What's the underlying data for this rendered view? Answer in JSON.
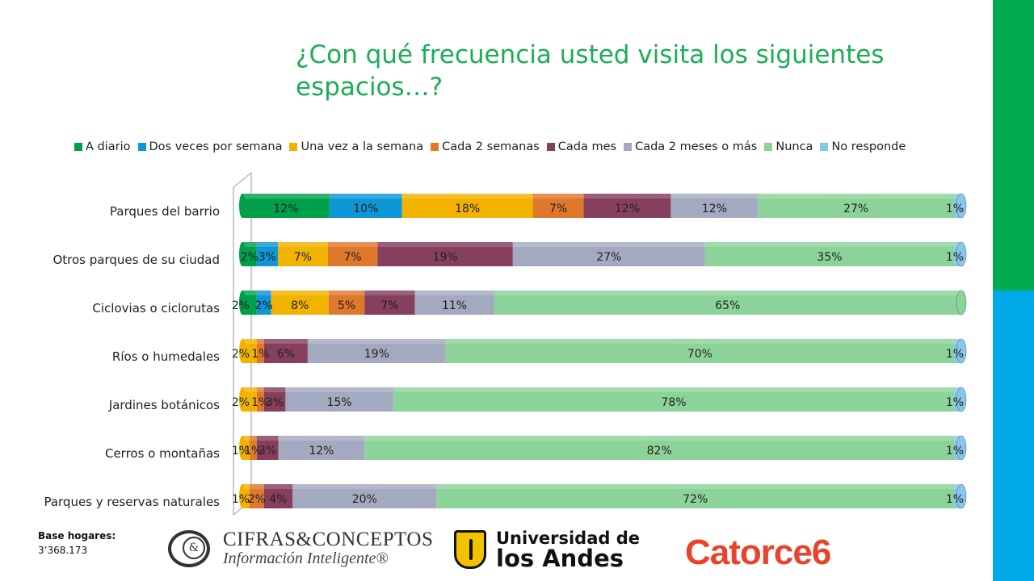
{
  "title": "¿Con qué frecuencia usted visita los siguientes espacios…?",
  "side_colors": [
    "#00AA4F",
    "#00A9E6"
  ],
  "chart_data": {
    "type": "bar",
    "orientation": "horizontal",
    "stacked": true,
    "percent_stacked": true,
    "legend_position": "top",
    "categories": [
      "Parques  del barrio",
      "Otros parques de su ciudad",
      "Ciclovias  o ciclorutas",
      "Ríos o humedales",
      "Jardines botánicos",
      "Cerros o montañas",
      "Parques y reservas naturales"
    ],
    "series": [
      {
        "name": "A diario",
        "color": "#00A04A",
        "values": [
          12,
          2,
          2,
          0,
          0,
          0,
          0
        ],
        "labels": [
          "12%",
          "2%",
          "2%",
          "",
          "",
          "",
          ""
        ]
      },
      {
        "name": "Dos veces por semana",
        "color": "#0E97D6",
        "values": [
          10,
          3,
          2,
          0,
          0,
          0,
          0
        ],
        "labels": [
          "10%",
          "3%",
          "2%",
          "",
          "",
          "",
          ""
        ]
      },
      {
        "name": "Una vez a la semana",
        "color": "#F2B300",
        "values": [
          18,
          7,
          8,
          2,
          2,
          1,
          1
        ],
        "labels": [
          "18%",
          "7%",
          "8%",
          "2%",
          "2%",
          "1%",
          "1%"
        ]
      },
      {
        "name": "Cada 2 semanas",
        "color": "#E0782B",
        "values": [
          7,
          7,
          5,
          1,
          1,
          1,
          2
        ],
        "labels": [
          "7%",
          "7%",
          "5%",
          "1%",
          "1%",
          "1%",
          "2%"
        ]
      },
      {
        "name": "Cada mes",
        "color": "#863F5C",
        "values": [
          12,
          19,
          7,
          6,
          3,
          3,
          4
        ],
        "labels": [
          "12%",
          "19%",
          "7%",
          "6%",
          "3%",
          "3%",
          "4%"
        ]
      },
      {
        "name": "Cada 2 meses o más",
        "color": "#A3A9BF",
        "values": [
          12,
          27,
          11,
          19,
          15,
          12,
          20
        ],
        "labels": [
          "12%",
          "27%",
          "11%",
          "19%",
          "15%",
          "12%",
          "20%"
        ]
      },
      {
        "name": "Nunca",
        "color": "#8CD39A",
        "values": [
          27,
          35,
          65,
          70,
          78,
          82,
          72
        ],
        "labels": [
          "27%",
          "35%",
          "65%",
          "70%",
          "78%",
          "82%",
          "72%"
        ]
      },
      {
        "name": "No responde",
        "color": "#88C6EC",
        "values": [
          1,
          1,
          0,
          1,
          1,
          1,
          1
        ],
        "labels": [
          "1%",
          "1%",
          "",
          "1%",
          "1%",
          "1%",
          "1%"
        ]
      }
    ]
  },
  "base": {
    "label": "Base hogares:",
    "value": "3’368.173"
  },
  "logos": {
    "cifras_top": "CIFRAS&CONCEPTOS",
    "cifras_bottom": "Información Inteligente®",
    "cifras_mark": "&",
    "uniandes_top": "Universidad de",
    "uniandes_bottom": "los Andes",
    "catorce": "Catorce6"
  }
}
